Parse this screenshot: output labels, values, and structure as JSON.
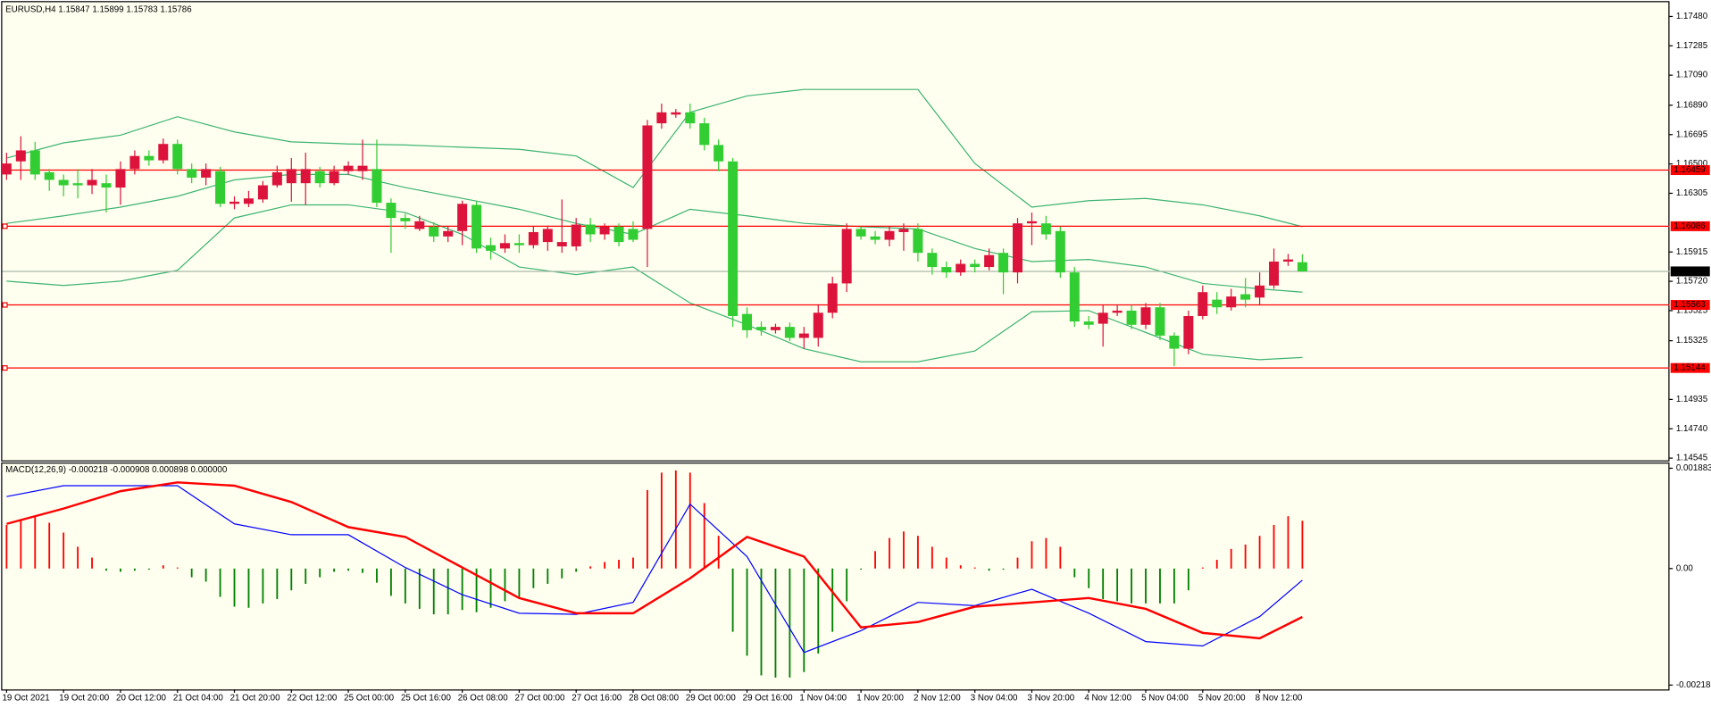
{
  "chart_data": [
    {
      "type": "candlestick",
      "legend": "EURUSD,H4  1.15847 1.15899 1.15783 1.15786",
      "categories": [
        "19 Oct 2021",
        null,
        null,
        null,
        "19 Oct 20:00",
        null,
        null,
        null,
        "20 Oct 12:00",
        null,
        null,
        null,
        "21 Oct 04:00",
        null,
        null,
        null,
        "21 Oct 20:00",
        null,
        null,
        null,
        "22 Oct 12:00",
        null,
        null,
        null,
        "25 Oct 00:00",
        null,
        null,
        null,
        "25 Oct 16:00",
        null,
        null,
        null,
        "26 Oct 08:00",
        null,
        null,
        null,
        "27 Oct 00:00",
        null,
        null,
        null,
        "27 Oct 16:00",
        null,
        null,
        null,
        "28 Oct 08:00",
        null,
        null,
        null,
        "29 Oct 00:00",
        null,
        null,
        null,
        "29 Oct 16:00",
        null,
        null,
        null,
        "1 Nov 04:00",
        null,
        null,
        null,
        "1 Nov 20:00",
        null,
        null,
        null,
        "2 Nov 12:00",
        null,
        null,
        null,
        "3 Nov 04:00",
        null,
        null,
        null,
        "3 Nov 20:00",
        null,
        null,
        null,
        "4 Nov 12:00",
        null,
        null,
        null,
        "5 Nov 04:00",
        null,
        null,
        null,
        "5 Nov 20:00",
        null,
        null,
        null,
        "8 Nov 12:00",
        null,
        null,
        null
      ],
      "open": [
        1.1643,
        1.16517,
        1.1659,
        1.16445,
        1.16394,
        1.16372,
        1.16358,
        1.16372,
        1.16343,
        1.16466,
        1.16553,
        1.16524,
        1.16633,
        1.16466,
        1.16409,
        1.16452,
        1.16235,
        1.16235,
        1.16264,
        1.16358,
        1.16372,
        1.16372,
        1.16452,
        1.16372,
        1.16452,
        1.16452,
        1.16466,
        1.16242,
        1.16141,
        1.16068,
        1.16083,
        1.16018,
        1.16054,
        1.16228,
        1.1596,
        1.15938,
        1.15974,
        1.1596,
        1.15981,
        1.15952,
        1.15952,
        1.16097,
        1.16032,
        1.16083,
        1.16068,
        1.16068,
        1.1677,
        1.16828,
        1.16843,
        1.1677,
        1.16626,
        1.16517,
        1.15503,
        1.15417,
        1.15395,
        1.15417,
        1.15344,
        1.15344,
        1.15511,
        1.15706,
        1.16068,
        1.16018,
        1.15996,
        1.16047,
        1.16068,
        1.15909,
        1.15815,
        1.15779,
        1.15836,
        1.15815,
        1.15909,
        1.15779,
        1.16105,
        1.16105,
        1.16054,
        1.15779,
        1.15453,
        1.15438,
        1.15511,
        1.15525,
        1.15431,
        1.15547,
        1.15359,
        1.15272,
        1.15489,
        1.15598,
        1.15547,
        1.15634,
        1.15612,
        1.15692,
        1.15851,
        1.15847
      ],
      "high": [
        1.16575,
        1.16684,
        1.16647,
        1.16466,
        1.1643,
        1.16466,
        1.16466,
        1.1643,
        1.16517,
        1.1659,
        1.1659,
        1.16669,
        1.16662,
        1.16503,
        1.16503,
        1.16481,
        1.16285,
        1.16321,
        1.16387,
        1.16488,
        1.16539,
        1.16575,
        1.16481,
        1.16488,
        1.16517,
        1.16662,
        1.16662,
        1.16271,
        1.1617,
        1.16155,
        1.16112,
        1.16083,
        1.16256,
        1.16249,
        1.1601,
        1.16032,
        1.16032,
        1.16083,
        1.1609,
        1.16264,
        1.16141,
        1.16141,
        1.16105,
        1.16105,
        1.16119,
        1.16792,
        1.16901,
        1.16865,
        1.16901,
        1.16807,
        1.16662,
        1.16539,
        1.15547,
        1.15453,
        1.15438,
        1.15446,
        1.15417,
        1.15561,
        1.1575,
        1.16105,
        1.16083,
        1.16054,
        1.16083,
        1.16105,
        1.16105,
        1.15938,
        1.15851,
        1.15865,
        1.15865,
        1.15938,
        1.15938,
        1.16141,
        1.16177,
        1.16155,
        1.16083,
        1.15815,
        1.15489,
        1.15561,
        1.15561,
        1.15561,
        1.15576,
        1.15576,
        1.1538,
        1.15525,
        1.15692,
        1.15648,
        1.1567,
        1.15742,
        1.15779,
        1.15938,
        1.15902,
        1.15899
      ],
      "low": [
        1.16394,
        1.16394,
        1.16394,
        1.16321,
        1.16285,
        1.16271,
        1.163,
        1.16177,
        1.16228,
        1.1643,
        1.16488,
        1.16503,
        1.1643,
        1.16372,
        1.16358,
        1.16213,
        1.16199,
        1.16213,
        1.16242,
        1.16343,
        1.16249,
        1.16228,
        1.16343,
        1.16358,
        1.1643,
        1.16394,
        1.16213,
        1.15909,
        1.16068,
        1.16054,
        1.15981,
        1.15981,
        1.1596,
        1.15909,
        1.15865,
        1.15909,
        1.15909,
        1.15938,
        1.15923,
        1.15909,
        1.15923,
        1.15981,
        1.15996,
        1.15952,
        1.15981,
        1.15815,
        1.16734,
        1.16807,
        1.16734,
        1.1659,
        1.16452,
        1.15417,
        1.15344,
        1.15359,
        1.15373,
        1.15323,
        1.15272,
        1.15286,
        1.15474,
        1.15648,
        1.15996,
        1.15967,
        1.15952,
        1.15923,
        1.15851,
        1.15764,
        1.15742,
        1.15757,
        1.15779,
        1.15793,
        1.15634,
        1.15706,
        1.1596,
        1.15996,
        1.15742,
        1.15417,
        1.15402,
        1.15286,
        1.15489,
        1.15402,
        1.15402,
        1.1533,
        1.15156,
        1.15235,
        1.15467,
        1.15503,
        1.15525,
        1.15547,
        1.15561,
        1.1567,
        1.15822,
        1.15783
      ],
      "close": [
        1.16503,
        1.1659,
        1.1643,
        1.16394,
        1.16358,
        1.16358,
        1.16394,
        1.16343,
        1.16466,
        1.16553,
        1.16524,
        1.16633,
        1.16466,
        1.16409,
        1.16466,
        1.16235,
        1.16249,
        1.16271,
        1.16358,
        1.16445,
        1.16466,
        1.16466,
        1.16372,
        1.16452,
        1.16488,
        1.16488,
        1.16242,
        1.16141,
        1.16119,
        1.16119,
        1.16018,
        1.16054,
        1.16235,
        1.15938,
        1.15923,
        1.15974,
        1.1596,
        1.16047,
        1.16068,
        1.15981,
        1.16097,
        1.16032,
        1.16083,
        1.15981,
        1.15996,
        1.16756,
        1.16843,
        1.16843,
        1.1677,
        1.16626,
        1.16517,
        1.15489,
        1.15395,
        1.15395,
        1.15417,
        1.15344,
        1.15373,
        1.15511,
        1.15706,
        1.16068,
        1.16018,
        1.15996,
        1.16054,
        1.16068,
        1.15909,
        1.15815,
        1.15779,
        1.15836,
        1.15815,
        1.15894,
        1.15779,
        1.16105,
        1.16119,
        1.16032,
        1.15779,
        1.15453,
        1.15431,
        1.15511,
        1.15525,
        1.15431,
        1.15547,
        1.15359,
        1.15272,
        1.15489,
        1.15648,
        1.15547,
        1.15619,
        1.15598,
        1.15692,
        1.15851,
        1.15865,
        1.15786
      ],
      "colors": {
        "up": "#dc143c",
        "down": "#32cd32"
      },
      "series": [
        {
          "color": "#3cb371",
          "x": [
            0,
            4,
            8,
            12,
            16,
            20,
            24,
            28,
            32,
            36,
            40,
            44,
            48,
            52,
            56,
            60,
            64,
            68,
            72,
            76,
            80,
            84,
            88,
            91
          ],
          "values": [
            1.16539,
            1.1664,
            1.16691,
            1.16814,
            1.16713,
            1.16647,
            1.16633,
            1.16626,
            1.16611,
            1.16597,
            1.16553,
            1.16343,
            1.16843,
            1.16952,
            1.16995,
            1.16995,
            1.16995,
            1.16503,
            1.16213,
            1.16256,
            1.16271,
            1.16228,
            1.16155,
            1.16083
          ]
        },
        {
          "color": "#3cb371",
          "x": [
            0,
            4,
            8,
            12,
            16,
            20,
            24,
            28,
            32,
            36,
            40,
            44,
            48,
            52,
            56,
            60,
            64,
            68,
            72,
            76,
            80,
            84,
            88,
            91
          ],
          "values": [
            1.16105,
            1.16155,
            1.16213,
            1.16285,
            1.16394,
            1.1643,
            1.1643,
            1.16343,
            1.16271,
            1.16199,
            1.16105,
            1.16032,
            1.16199,
            1.16155,
            1.16105,
            1.16083,
            1.16068,
            1.15938,
            1.15851,
            1.15865,
            1.15815,
            1.15706,
            1.1567,
            1.15648
          ]
        },
        {
          "color": "#3cb371",
          "x": [
            0,
            4,
            8,
            12,
            16,
            20,
            24,
            28,
            32,
            36,
            40,
            44,
            48,
            52,
            56,
            60,
            64,
            68,
            72,
            76,
            80,
            84,
            88,
            91
          ],
          "values": [
            1.15721,
            1.15692,
            1.15721,
            1.15793,
            1.16141,
            1.16228,
            1.16228,
            1.16177,
            1.16032,
            1.15815,
            1.15764,
            1.15815,
            1.15576,
            1.15431,
            1.15272,
            1.15185,
            1.15185,
            1.15257,
            1.15518,
            1.15525,
            1.1538,
            1.15235,
            1.15199,
            1.15214
          ]
        }
      ],
      "levels": [
        1.16459,
        1.16086,
        1.15563,
        1.15144
      ],
      "level_color": "#ff0000",
      "current_price": 1.15786,
      "current_color": "#a9b9a9",
      "ylim": [
        1.1453,
        1.17575
      ],
      "yticks": [
        {
          "value": 1.1748,
          "label": "1.17480"
        },
        1.17285,
        {
          "value": 1.1709,
          "label": "1.17090"
        },
        {
          "value": 1.1689,
          "label": "1.16890"
        },
        1.16695,
        {
          "value": 1.165,
          "label": "1.16500"
        },
        1.16305,
        1.15915,
        {
          "value": 1.1572,
          "label": "1.15720"
        },
        1.15525,
        1.15325,
        1.14935,
        {
          "value": 1.1474,
          "label": "1.14740"
        },
        1.14545
      ]
    },
    {
      "type": "macd",
      "legend": "MACD(12,26,9) -0.000218 -0.000908 0.000898 0.000000",
      "histogram": [
        0.000819,
        0.000901,
        0.000982,
        0.00086,
        0.000675,
        0.000409,
        0.000205,
        -4.1e-05,
        -6.1e-05,
        -4.1e-05,
        -2e-05,
        6.1e-05,
        2e-05,
        -0.000164,
        -0.000246,
        -0.000532,
        -0.000716,
        -0.000737,
        -0.000655,
        -0.000573,
        -0.000409,
        -0.000287,
        -0.000164,
        -6.1e-05,
        -4.1e-05,
        -8.2e-05,
        -0.000266,
        -0.000512,
        -0.000655,
        -0.000757,
        -0.00086,
        -0.00086,
        -0.000778,
        -0.000819,
        -0.000737,
        -0.000614,
        -0.000532,
        -0.000368,
        -0.000287,
        -0.000184,
        -6.1e-05,
        4.1e-05,
        0.000123,
        0.000164,
        0.000205,
        0.001474,
        0.001801,
        0.001842,
        0.001801,
        0.001228,
        0.000614,
        -0.001187,
        -0.001637,
        -0.002006,
        -0.002047,
        -0.002047,
        -0.001944,
        -0.001596,
        -0.001187,
        -0.000614,
        -2e-05,
        0.000327,
        0.000573,
        0.000696,
        0.000614,
        0.000409,
        0.000205,
        6.1e-05,
        2e-05,
        -4.1e-05,
        -2e-05,
        0.000205,
        0.000512,
        0.000573,
        0.000409,
        -0.000164,
        -0.000368,
        -0.000573,
        -0.000614,
        -0.000655,
        -0.000655,
        -0.000655,
        -0.000655,
        -0.000409,
        2e-05,
        0.000164,
        0.000368,
        0.00045,
        0.000614,
        0.000819,
        0.000982,
        0.000898
      ],
      "histogram_colors": {
        "up": "#ff0000",
        "down": "#008000"
      },
      "series": [
        {
          "color": "#0000ff",
          "x": [
            0,
            4,
            8,
            12,
            16,
            20,
            24,
            28,
            32,
            36,
            40,
            44,
            48,
            52,
            56,
            60,
            64,
            68,
            72,
            76,
            80,
            84,
            88,
            91
          ],
          "values": [
            0.001351,
            0.001556,
            0.001556,
            0.001556,
            0.000839,
            0.000635,
            0.000635,
            2e-05,
            -0.000491,
            -0.000839,
            -0.00086,
            -0.000635,
            0.001208,
            0.000225,
            -0.001576,
            -0.001167,
            -0.000635,
            -0.000696,
            -0.000389,
            -0.000839,
            -0.001371,
            -0.001453,
            -0.000901,
            -0.000218
          ]
        },
        {
          "color": "#ff0000",
          "x": [
            0,
            4,
            8,
            12,
            16,
            20,
            24,
            28,
            32,
            36,
            40,
            44,
            48,
            52,
            56,
            60,
            64,
            68,
            72,
            76,
            80,
            84,
            88,
            91
          ],
          "values": [
            0.000839,
            0.001126,
            0.001453,
            0.001617,
            0.001556,
            0.001249,
            0.000778,
            0.000594,
            2e-05,
            -0.000553,
            -0.000839,
            -0.000839,
            -0.000184,
            0.000594,
            0.000225,
            -0.001105,
            -0.001003,
            -0.000716,
            -0.000635,
            -0.000553,
            -0.000757,
            -0.001208,
            -0.00131,
            -0.000908
          ]
        }
      ],
      "ylim": [
        -0.00227,
        0.00199
      ],
      "yticks": [
        0.001883,
        {
          "value": 0,
          "label": "0.00"
        },
        -0.002188
      ]
    }
  ]
}
